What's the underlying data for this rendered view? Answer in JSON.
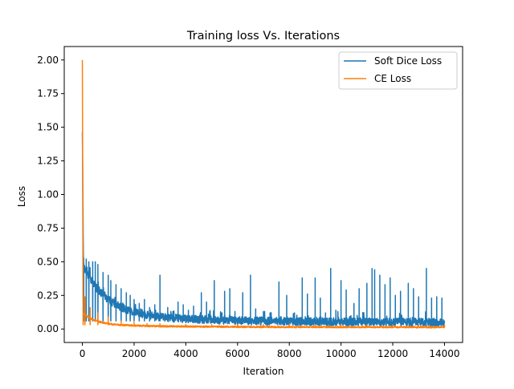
{
  "chart_data": {
    "type": "line",
    "title": "Training loss Vs. Iterations",
    "xlabel": "Iteration",
    "ylabel": "Loss",
    "xlim": [
      -700,
      14700
    ],
    "ylim": [
      -0.1,
      2.1
    ],
    "xticks": [
      0,
      2000,
      4000,
      6000,
      8000,
      10000,
      12000,
      14000
    ],
    "xtick_labels": [
      "0",
      "2000",
      "4000",
      "6000",
      "8000",
      "10000",
      "12000",
      "14000"
    ],
    "yticks": [
      0.0,
      0.25,
      0.5,
      0.75,
      1.0,
      1.25,
      1.5,
      1.75,
      2.0
    ],
    "ytick_labels": [
      "0.00",
      "0.25",
      "0.50",
      "0.75",
      "1.00",
      "1.25",
      "1.50",
      "1.75",
      "2.00"
    ],
    "grid": false,
    "legend_position": "top-right",
    "series": [
      {
        "name": "Soft Dice Loss",
        "color": "#1f77b4",
        "x_range": [
          0,
          14000
        ],
        "start_value": 1.47,
        "floor": 0.04,
        "noise": 0.05,
        "spikes": [
          [
            50,
            0.53
          ],
          [
            150,
            0.52
          ],
          [
            250,
            0.5
          ],
          [
            400,
            0.5
          ],
          [
            500,
            0.5
          ],
          [
            600,
            0.48
          ],
          [
            800,
            0.42
          ],
          [
            1000,
            0.4
          ],
          [
            1100,
            0.36
          ],
          [
            1300,
            0.33
          ],
          [
            1500,
            0.3
          ],
          [
            1700,
            0.27
          ],
          [
            1850,
            0.25
          ],
          [
            2000,
            0.22
          ],
          [
            2200,
            0.19
          ],
          [
            2400,
            0.22
          ],
          [
            2600,
            0.16
          ],
          [
            2800,
            0.18
          ],
          [
            3000,
            0.4
          ],
          [
            3300,
            0.16
          ],
          [
            3500,
            0.13
          ],
          [
            3700,
            0.2
          ],
          [
            3900,
            0.18
          ],
          [
            4100,
            0.14
          ],
          [
            4300,
            0.17
          ],
          [
            4600,
            0.27
          ],
          [
            4800,
            0.2
          ],
          [
            5100,
            0.36
          ],
          [
            5400,
            0.12
          ],
          [
            5500,
            0.28
          ],
          [
            5700,
            0.3
          ],
          [
            5900,
            0.13
          ],
          [
            6200,
            0.27
          ],
          [
            6500,
            0.4
          ],
          [
            6700,
            0.15
          ],
          [
            7000,
            0.13
          ],
          [
            7300,
            0.12
          ],
          [
            7600,
            0.35
          ],
          [
            7900,
            0.25
          ],
          [
            8200,
            0.12
          ],
          [
            8500,
            0.38
          ],
          [
            8700,
            0.26
          ],
          [
            9000,
            0.38
          ],
          [
            9200,
            0.23
          ],
          [
            9400,
            0.12
          ],
          [
            9600,
            0.45
          ],
          [
            9800,
            0.14
          ],
          [
            10000,
            0.36
          ],
          [
            10200,
            0.29
          ],
          [
            10500,
            0.19
          ],
          [
            10700,
            0.3
          ],
          [
            11000,
            0.34
          ],
          [
            11200,
            0.45
          ],
          [
            11300,
            0.44
          ],
          [
            11500,
            0.4
          ],
          [
            11700,
            0.33
          ],
          [
            11900,
            0.38
          ],
          [
            12100,
            0.25
          ],
          [
            12300,
            0.28
          ],
          [
            12600,
            0.34
          ],
          [
            12800,
            0.3
          ],
          [
            13000,
            0.24
          ],
          [
            13300,
            0.45
          ],
          [
            13500,
            0.23
          ],
          [
            13700,
            0.24
          ],
          [
            13900,
            0.23
          ]
        ]
      },
      {
        "name": "CE Loss",
        "color": "#ff7f0e",
        "x_range": [
          0,
          14000
        ],
        "start_value": 2.0,
        "floor": 0.012,
        "noise": 0.012,
        "spikes": [
          [
            30,
            0.25
          ],
          [
            100,
            0.24
          ],
          [
            300,
            0.16
          ],
          [
            600,
            0.12
          ],
          [
            1000,
            0.09
          ],
          [
            1500,
            0.06
          ],
          [
            2000,
            0.05
          ],
          [
            2500,
            0.04
          ],
          [
            3000,
            0.04
          ],
          [
            4000,
            0.03
          ],
          [
            5000,
            0.03
          ],
          [
            6000,
            0.02
          ],
          [
            7000,
            0.02
          ],
          [
            8000,
            0.02
          ],
          [
            9000,
            0.02
          ],
          [
            10000,
            0.02
          ],
          [
            11000,
            0.02
          ],
          [
            12000,
            0.02
          ],
          [
            13000,
            0.02
          ],
          [
            14000,
            0.02
          ]
        ]
      }
    ]
  }
}
